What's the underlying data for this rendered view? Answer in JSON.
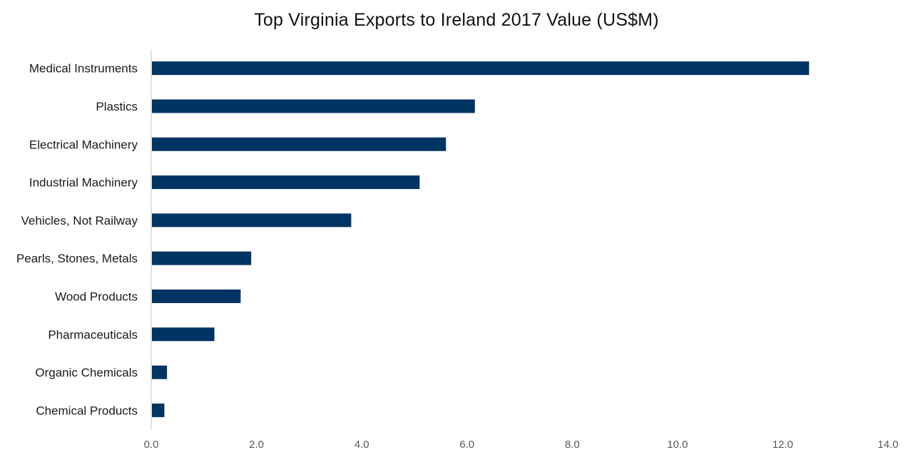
{
  "chart_data": {
    "type": "bar",
    "orientation": "horizontal",
    "title": "Top Virginia Exports to Ireland 2017 Value (US$M)",
    "xlabel": "",
    "ylabel": "",
    "categories": [
      "Medical Instruments",
      "Plastics",
      "Electrical Machinery",
      "Industrial Machinery",
      "Vehicles, Not Railway",
      "Pearls, Stones, Metals",
      "Wood Products",
      "Pharmaceuticals",
      "Organic Chemicals",
      "Chemical Products"
    ],
    "values": [
      12.5,
      6.15,
      5.6,
      5.1,
      3.8,
      1.9,
      1.7,
      1.2,
      0.3,
      0.25
    ],
    "xlim": [
      0,
      14
    ],
    "x_ticks": [
      "0.0",
      "2.0",
      "4.0",
      "6.0",
      "8.0",
      "10.0",
      "12.0",
      "14.0"
    ],
    "bar_color": "#003462",
    "axis_color": "#d9d9d9",
    "grid": false,
    "legend": "none"
  }
}
